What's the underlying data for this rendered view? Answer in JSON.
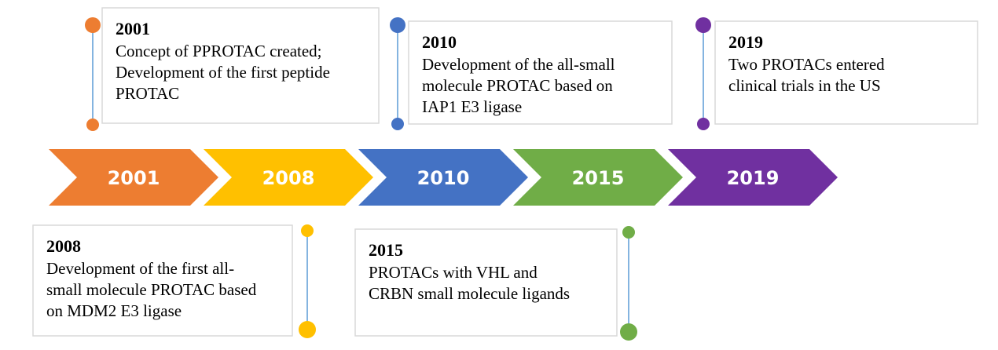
{
  "arrows": [
    {
      "label": "2001",
      "color": "#ed7d31"
    },
    {
      "label": "2008",
      "color": "#ffc000"
    },
    {
      "label": "2010",
      "color": "#4472c4"
    },
    {
      "label": "2015",
      "color": "#70ad47"
    },
    {
      "label": "2019",
      "color": "#7030a0"
    }
  ],
  "events": [
    {
      "year": "2001",
      "color": "#ed7d31",
      "lines": [
        "Concept of PPROTAC created;",
        "Development of the first peptide",
        "PROTAC"
      ]
    },
    {
      "year": "2010",
      "color": "#4472c4",
      "lines": [
        "Development of the all-small",
        "molecule PROTAC based on",
        "IAP1 E3 ligase"
      ]
    },
    {
      "year": "2019",
      "color": "#7030a0",
      "lines": [
        "Two PROTACs entered",
        "clinical trials in the US"
      ]
    },
    {
      "year": "2008",
      "color": "#ffc000",
      "lines": [
        "Development of the first all-",
        "small molecule PROTAC based",
        "on MDM2 E3 ligase"
      ]
    },
    {
      "year": "2015",
      "color": "#70ad47",
      "lines": [
        "PROTACs with VHL and",
        "CRBN small molecule ligands"
      ]
    }
  ]
}
